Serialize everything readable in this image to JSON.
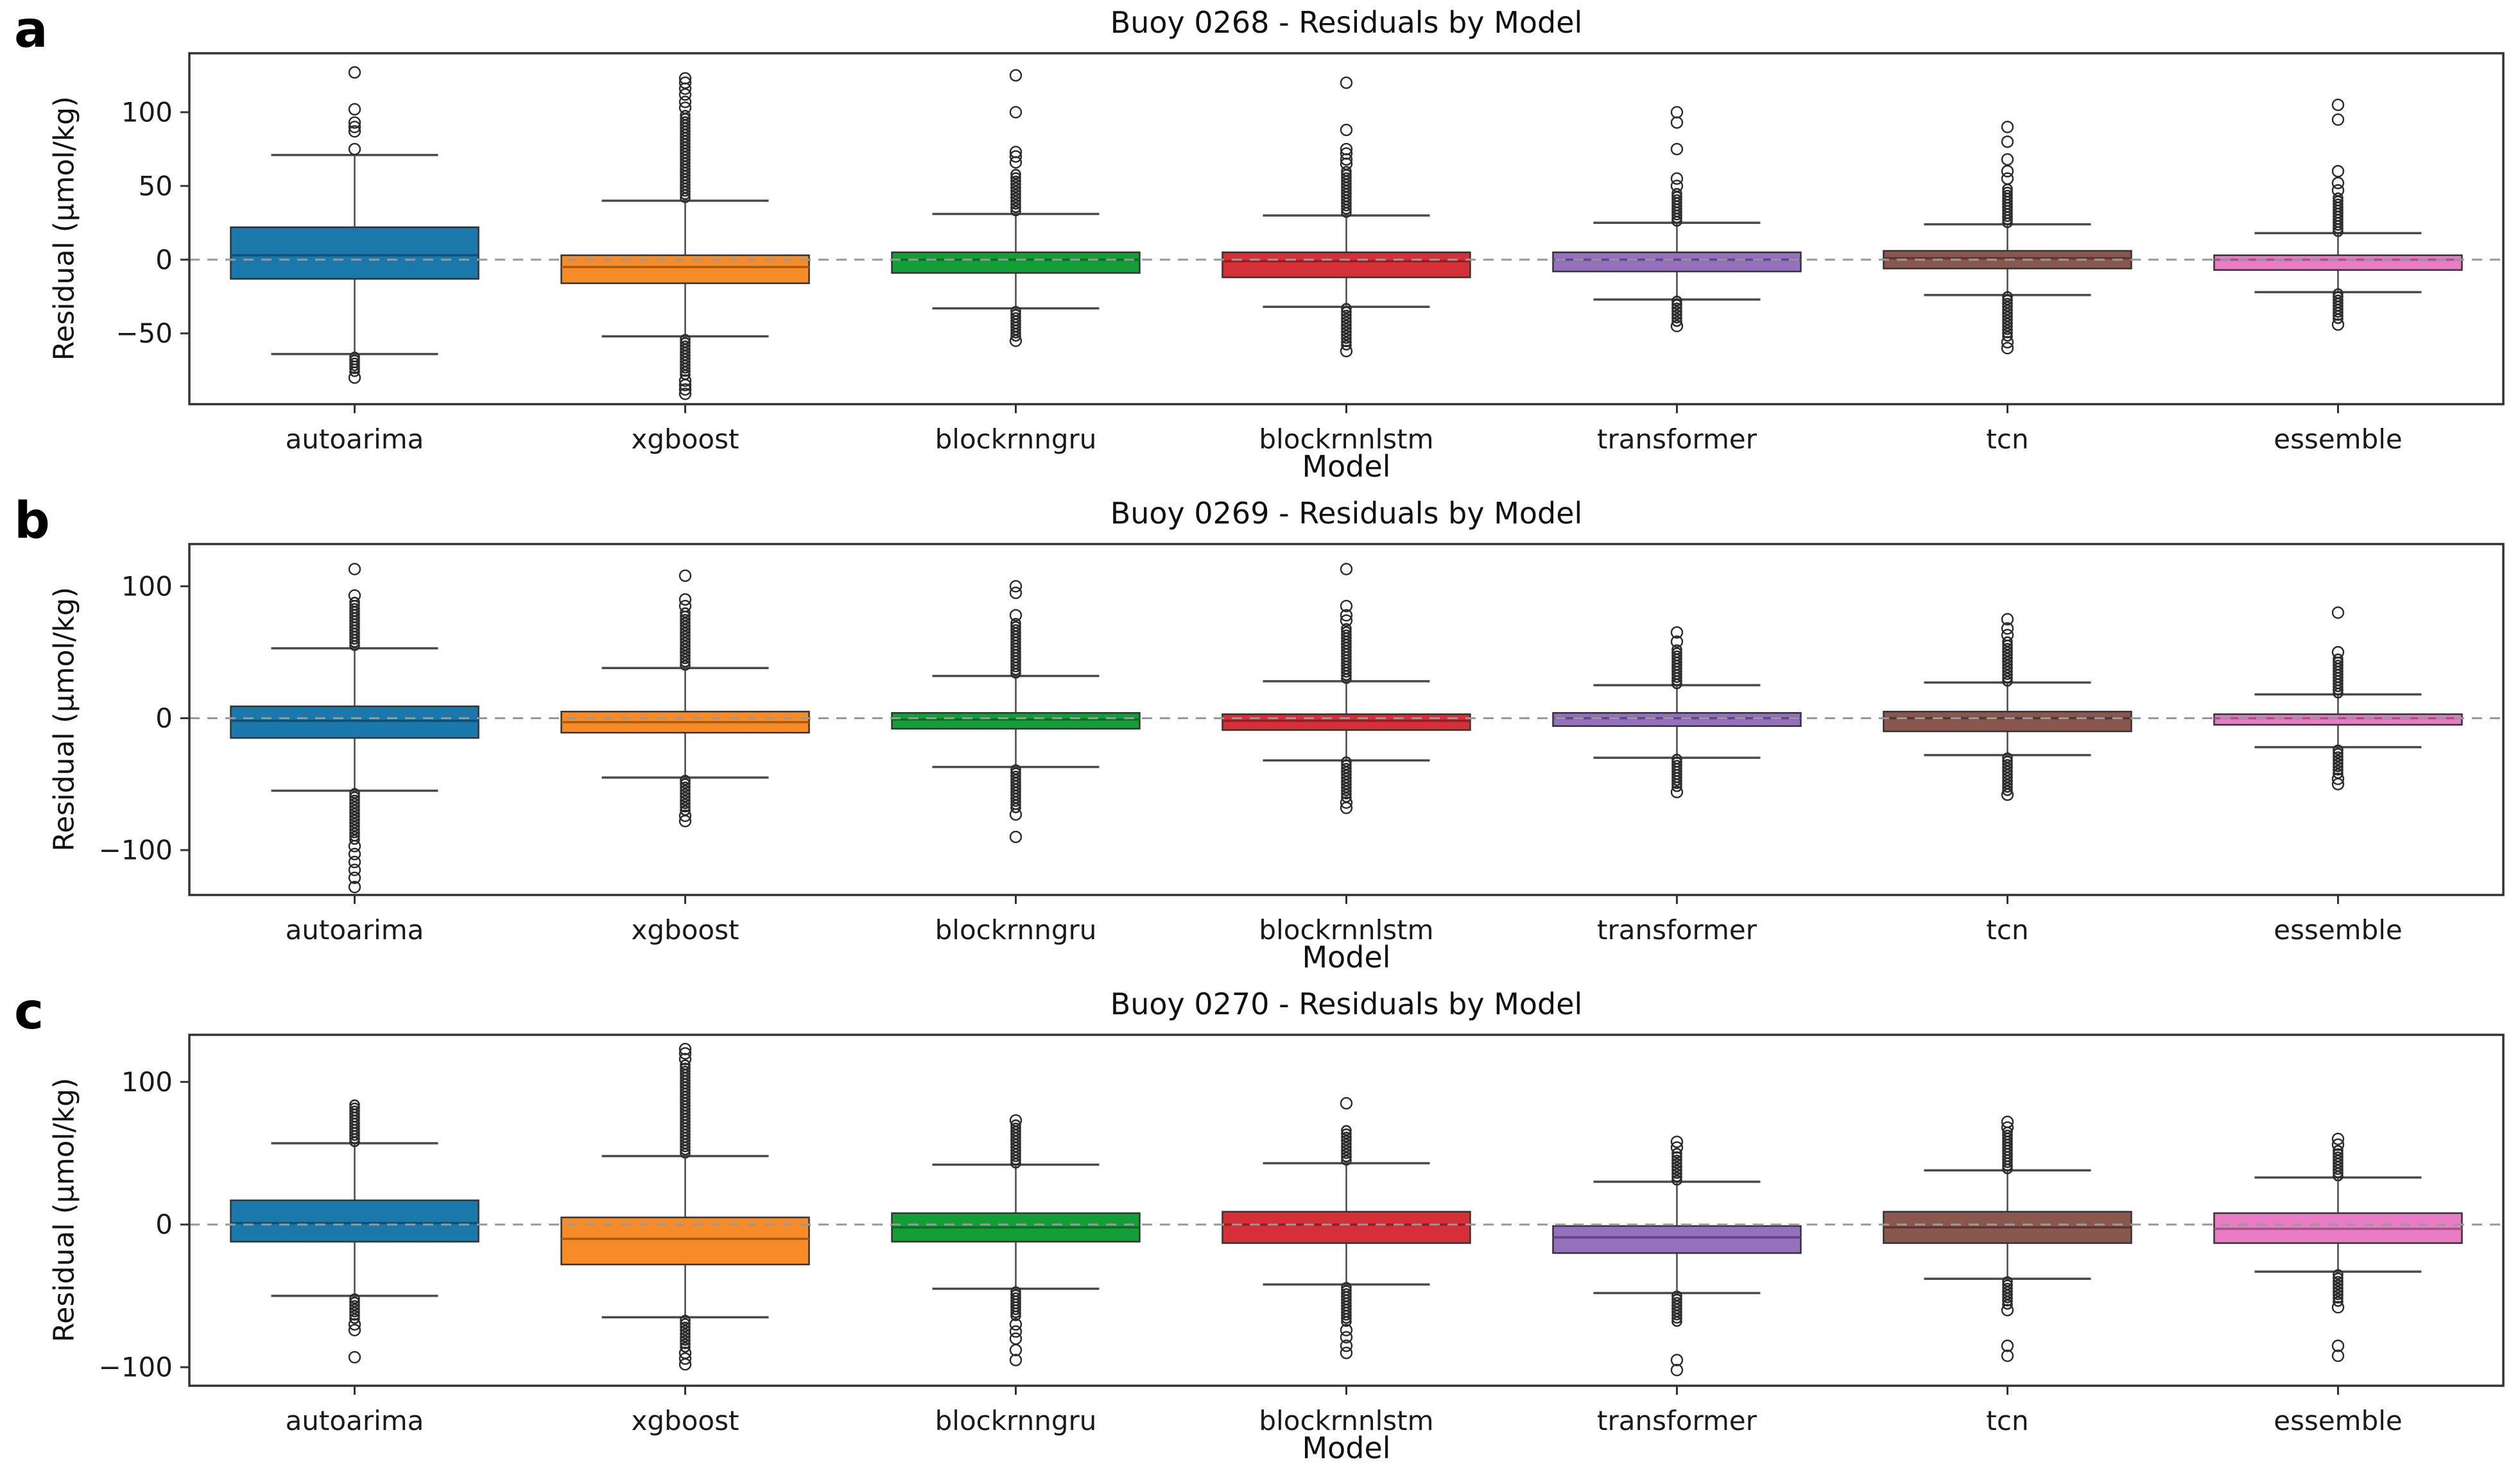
{
  "figure": {
    "background": "#ffffff",
    "frame_color": "#333333",
    "tick_color": "#333333",
    "text_color": "#1a1a1a",
    "zero_line_color": "#999999",
    "whisker_color": "#4a4a4a",
    "outlier_color": "#2b2b2b"
  },
  "chart_data": [
    {
      "type": "boxplot",
      "letter": "a",
      "title": "Buoy 0268 - Residuals by Model",
      "ylabel": "Residual (μmol/kg)",
      "xlabel": "Model",
      "ylim": [
        -98,
        140
      ],
      "yticks": [
        100,
        50,
        0,
        -50
      ],
      "zero_line": 0,
      "grid": false,
      "categories": [
        "autoarima",
        "xgboost",
        "blockrnngru",
        "blockrnnlstm",
        "transformer",
        "tcn",
        "essemble"
      ],
      "series": [
        {
          "model": "autoarima",
          "color": "#1a78ab",
          "median_color": "#0e4f75",
          "whisker_low": -64,
          "q1": -13,
          "median": 3,
          "q3": 22,
          "whisker_high": 71,
          "outliers_high_range": null,
          "outliers_high": [
            75,
            87,
            90,
            93,
            102,
            127
          ],
          "outliers_low_range": [
            -76,
            -66
          ],
          "outliers_low": [
            -80
          ]
        },
        {
          "model": "xgboost",
          "color": "#f78b28",
          "median_color": "#a85a0e",
          "whisker_low": -52,
          "q1": -16,
          "median": -5,
          "q3": 3,
          "whisker_high": 40,
          "outliers_high_range": [
            42,
            98
          ],
          "outliers_high": [
            103,
            107,
            112,
            116,
            120,
            123
          ],
          "outliers_low_range": [
            -78,
            -54
          ],
          "outliers_low": [
            -82,
            -85,
            -88,
            -91
          ]
        },
        {
          "model": "blockrnngru",
          "color": "#149e38",
          "median_color": "#0a6b24",
          "whisker_low": -33,
          "q1": -9,
          "median": 0,
          "q3": 5,
          "whisker_high": 31,
          "outliers_high_range": [
            33,
            58
          ],
          "outliers_high": [
            66,
            70,
            73,
            100,
            125
          ],
          "outliers_low_range": [
            -52,
            -35
          ],
          "outliers_low": [
            -55
          ]
        },
        {
          "model": "blockrnnlstm",
          "color": "#d62f38",
          "median_color": "#8e1f26",
          "whisker_low": -32,
          "q1": -12,
          "median": -1,
          "q3": 5,
          "whisker_high": 30,
          "outliers_high_range": [
            32,
            60
          ],
          "outliers_high": [
            65,
            68,
            72,
            75,
            88,
            120
          ],
          "outliers_low_range": [
            -58,
            -33
          ],
          "outliers_low": [
            -62
          ]
        },
        {
          "model": "transformer",
          "color": "#9470bd",
          "median_color": "#604685",
          "whisker_low": -27,
          "q1": -8,
          "median": 0,
          "q3": 5,
          "whisker_high": 25,
          "outliers_high_range": [
            26,
            45
          ],
          "outliers_high": [
            50,
            55,
            75,
            93,
            100
          ],
          "outliers_low_range": [
            -42,
            -28
          ],
          "outliers_low": [
            -45
          ]
        },
        {
          "model": "tcn",
          "color": "#8a574e",
          "median_color": "#5a3630",
          "whisker_low": -24,
          "q1": -6,
          "median": 1,
          "q3": 6,
          "whisker_high": 24,
          "outliers_high_range": [
            25,
            48
          ],
          "outliers_high": [
            55,
            60,
            68,
            80,
            90
          ],
          "outliers_low_range": [
            -52,
            -25
          ],
          "outliers_low": [
            -56,
            -60
          ]
        },
        {
          "model": "essemble",
          "color": "#ea7cc5",
          "median_color": "#a2538a",
          "whisker_low": -22,
          "q1": -7,
          "median": 0,
          "q3": 3,
          "whisker_high": 18,
          "outliers_high_range": [
            19,
            42
          ],
          "outliers_high": [
            47,
            52,
            60,
            95,
            105
          ],
          "outliers_low_range": [
            -40,
            -23
          ],
          "outliers_low": [
            -44
          ]
        }
      ]
    },
    {
      "type": "boxplot",
      "letter": "b",
      "title": "Buoy 0269 - Residuals by Model",
      "ylabel": "Residual (μmol/kg)",
      "xlabel": "Model",
      "ylim": [
        -134,
        132
      ],
      "yticks": [
        100,
        0,
        -100
      ],
      "zero_line": 0,
      "grid": false,
      "categories": [
        "autoarima",
        "xgboost",
        "blockrnngru",
        "blockrnnlstm",
        "transformer",
        "tcn",
        "essemble"
      ],
      "series": [
        {
          "model": "autoarima",
          "color": "#1a78ab",
          "median_color": "#0e4f75",
          "whisker_low": -55,
          "q1": -15,
          "median": -2,
          "q3": 9,
          "whisker_high": 53,
          "outliers_high_range": [
            55,
            88
          ],
          "outliers_high": [
            93,
            113
          ],
          "outliers_low_range": [
            -92,
            -57
          ],
          "outliers_low": [
            -97,
            -103,
            -109,
            -115,
            -121,
            -128
          ]
        },
        {
          "model": "xgboost",
          "color": "#f78b28",
          "median_color": "#a85a0e",
          "whisker_low": -45,
          "q1": -11,
          "median": -3,
          "q3": 5,
          "whisker_high": 38,
          "outliers_high_range": [
            40,
            80
          ],
          "outliers_high": [
            85,
            90,
            108
          ],
          "outliers_low_range": [
            -70,
            -47
          ],
          "outliers_low": [
            -74,
            -78
          ]
        },
        {
          "model": "blockrnngru",
          "color": "#149e38",
          "median_color": "#0a6b24",
          "whisker_low": -37,
          "q1": -8,
          "median": -1,
          "q3": 4,
          "whisker_high": 32,
          "outliers_high_range": [
            34,
            72
          ],
          "outliers_high": [
            78,
            95,
            100
          ],
          "outliers_low_range": [
            -68,
            -39
          ],
          "outliers_low": [
            -73,
            -90
          ]
        },
        {
          "model": "blockrnnlstm",
          "color": "#d62f38",
          "median_color": "#8e1f26",
          "whisker_low": -32,
          "q1": -9,
          "median": -2,
          "q3": 3,
          "whisker_high": 28,
          "outliers_high_range": [
            30,
            68
          ],
          "outliers_high": [
            74,
            78,
            85,
            113
          ],
          "outliers_low_range": [
            -60,
            -33
          ],
          "outliers_low": [
            -64,
            -68
          ]
        },
        {
          "model": "transformer",
          "color": "#9470bd",
          "median_color": "#604685",
          "whisker_low": -30,
          "q1": -6,
          "median": 0,
          "q3": 4,
          "whisker_high": 25,
          "outliers_high_range": [
            26,
            52
          ],
          "outliers_high": [
            58,
            65
          ],
          "outliers_low_range": [
            -52,
            -31
          ],
          "outliers_low": [
            -56
          ]
        },
        {
          "model": "tcn",
          "color": "#8a574e",
          "median_color": "#5a3630",
          "whisker_low": -28,
          "q1": -10,
          "median": 0,
          "q3": 5,
          "whisker_high": 27,
          "outliers_high_range": [
            28,
            58
          ],
          "outliers_high": [
            63,
            68,
            75
          ],
          "outliers_low_range": [
            -55,
            -30
          ],
          "outliers_low": [
            -58
          ]
        },
        {
          "model": "essemble",
          "color": "#ea7cc5",
          "median_color": "#a2538a",
          "whisker_low": -22,
          "q1": -5,
          "median": 0,
          "q3": 3,
          "whisker_high": 18,
          "outliers_high_range": [
            19,
            45
          ],
          "outliers_high": [
            50,
            80
          ],
          "outliers_low_range": [
            -42,
            -24
          ],
          "outliers_low": [
            -46,
            -50
          ]
        }
      ]
    },
    {
      "type": "boxplot",
      "letter": "c",
      "title": "Buoy 0270 - Residuals by Model",
      "ylabel": "Residual (μmol/kg)",
      "xlabel": "Model",
      "ylim": [
        -113,
        133
      ],
      "yticks": [
        100,
        0,
        -100
      ],
      "zero_line": 0,
      "grid": false,
      "categories": [
        "autoarima",
        "xgboost",
        "blockrnngru",
        "blockrnnlstm",
        "transformer",
        "tcn",
        "essemble"
      ],
      "series": [
        {
          "model": "autoarima",
          "color": "#1a78ab",
          "median_color": "#0e4f75",
          "whisker_low": -50,
          "q1": -12,
          "median": 1,
          "q3": 17,
          "whisker_high": 57,
          "outliers_high_range": [
            58,
            84
          ],
          "outliers_high": [],
          "outliers_low_range": [
            -66,
            -52
          ],
          "outliers_low": [
            -70,
            -74,
            -93
          ]
        },
        {
          "model": "xgboost",
          "color": "#f78b28",
          "median_color": "#a85a0e",
          "whisker_low": -65,
          "q1": -28,
          "median": -10,
          "q3": 5,
          "whisker_high": 48,
          "outliers_high_range": [
            50,
            112
          ],
          "outliers_high": [
            116,
            120,
            123
          ],
          "outliers_low_range": [
            -86,
            -67
          ],
          "outliers_low": [
            -90,
            -94,
            -98
          ]
        },
        {
          "model": "blockrnngru",
          "color": "#149e38",
          "median_color": "#0a6b24",
          "whisker_low": -45,
          "q1": -12,
          "median": -2,
          "q3": 8,
          "whisker_high": 42,
          "outliers_high_range": [
            43,
            70
          ],
          "outliers_high": [
            73
          ],
          "outliers_low_range": [
            -64,
            -47
          ],
          "outliers_low": [
            -70,
            -75,
            -80,
            -88,
            -95
          ]
        },
        {
          "model": "blockrnnlstm",
          "color": "#d62f38",
          "median_color": "#8e1f26",
          "whisker_low": -42,
          "q1": -13,
          "median": 0,
          "q3": 9,
          "whisker_high": 43,
          "outliers_high_range": [
            45,
            66
          ],
          "outliers_high": [
            85
          ],
          "outliers_low_range": [
            -68,
            -44
          ],
          "outliers_low": [
            -74,
            -79,
            -85,
            -90
          ]
        },
        {
          "model": "transformer",
          "color": "#9470bd",
          "median_color": "#604685",
          "whisker_low": -48,
          "q1": -20,
          "median": -9,
          "q3": -1,
          "whisker_high": 30,
          "outliers_high_range": [
            31,
            50
          ],
          "outliers_high": [
            54,
            58
          ],
          "outliers_low_range": [
            -68,
            -50
          ],
          "outliers_low": [
            -95,
            -102
          ]
        },
        {
          "model": "tcn",
          "color": "#8a574e",
          "median_color": "#5a3630",
          "whisker_low": -38,
          "q1": -13,
          "median": -2,
          "q3": 9,
          "whisker_high": 38,
          "outliers_high_range": [
            39,
            65
          ],
          "outliers_high": [
            68,
            72
          ],
          "outliers_low_range": [
            -56,
            -40
          ],
          "outliers_low": [
            -60,
            -85,
            -92
          ]
        },
        {
          "model": "essemble",
          "color": "#ea7cc5",
          "median_color": "#a2538a",
          "whisker_low": -33,
          "q1": -13,
          "median": -3,
          "q3": 8,
          "whisker_high": 33,
          "outliers_high_range": [
            34,
            52
          ],
          "outliers_high": [
            56,
            60
          ],
          "outliers_low_range": [
            -54,
            -35
          ],
          "outliers_low": [
            -58,
            -85,
            -92
          ]
        }
      ]
    }
  ]
}
